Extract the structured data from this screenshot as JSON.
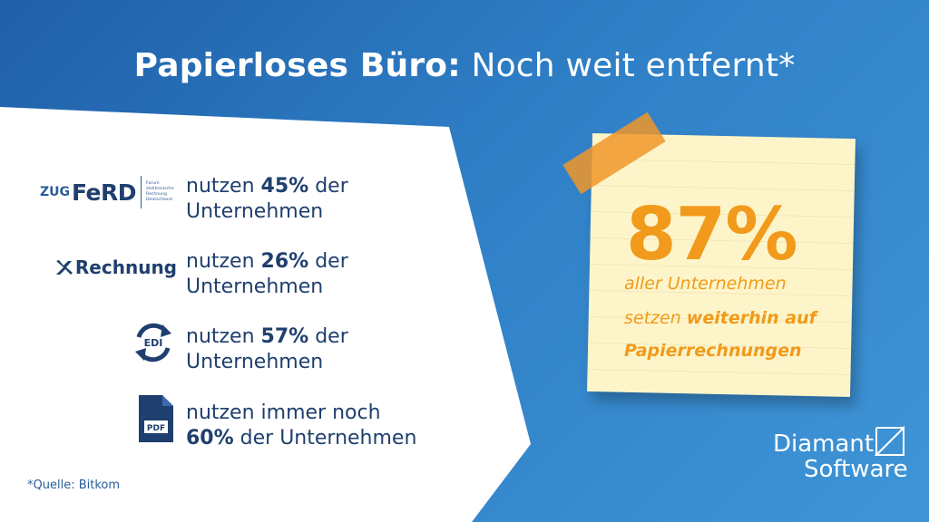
{
  "title": {
    "bold": "Papierloses Büro:",
    "rest": "Noch weit entfernt*"
  },
  "rows": [
    {
      "logo": "zugferd",
      "logo_text": {
        "zug": "ZUG",
        "ferd": "FeRD",
        "small": "Forum elektronische Rechnung Deutschland"
      },
      "pre": "nutzen ",
      "pct": "45%",
      "post": " der",
      "line2": "Unternehmen"
    },
    {
      "logo": "xrechnung",
      "logo_text": {
        "label": "Rechnung"
      },
      "pre": "nutzen ",
      "pct": "26%",
      "post": " der",
      "line2": "Unternehmen"
    },
    {
      "logo": "edi",
      "logo_text": {
        "label": "EDI"
      },
      "pre": "nutzen ",
      "pct": "57%",
      "post": " der",
      "line2": "Unternehmen"
    },
    {
      "logo": "pdf",
      "logo_text": {
        "label": "PDF"
      },
      "line1": "nutzen immer noch",
      "pct": "60%",
      "post": " der Unternehmen"
    }
  ],
  "source": "*Quelle: Bitkom",
  "note": {
    "big": "87%",
    "line1": "aller Unternehmen",
    "line2_a": "setzen ",
    "line2_b": "weiterhin auf",
    "line3": "Papierrechnungen"
  },
  "brand": {
    "line1": "Diamant",
    "line2": "Software"
  },
  "colors": {
    "blue_dark": "#1f3f6e",
    "accent": "#f19a1b",
    "note": "#fdf5c9"
  }
}
